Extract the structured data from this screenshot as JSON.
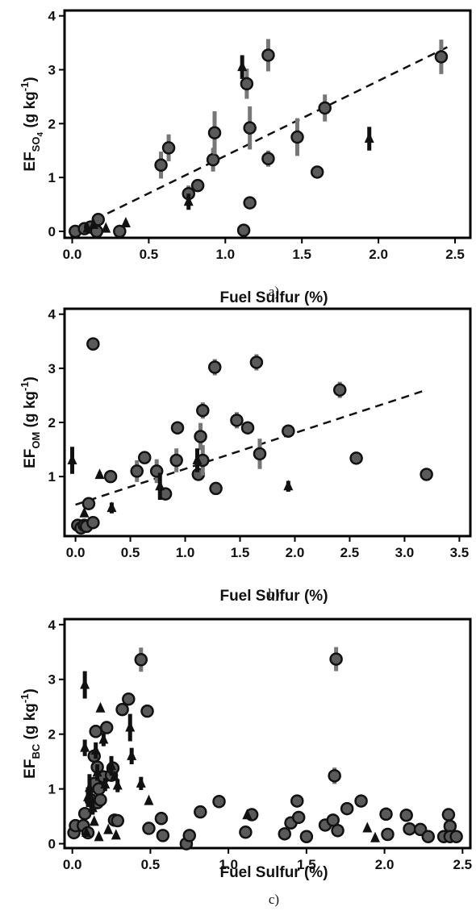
{
  "colors": {
    "circle_fill": "#5a5a5a",
    "circle_stroke": "#111111",
    "error_bar": "#777777",
    "triangle": "#111111",
    "fit_line": "#111111"
  },
  "chart_data": [
    {
      "type": "scatter",
      "panel_label": "a)",
      "xlabel": "Fuel Sulfur (%)",
      "ylabel": {
        "main": "EF",
        "sub": "SO",
        "sub2": "4",
        "units": " (g kg",
        "exp": "-1",
        "close": ")"
      },
      "xlim": [
        -0.05,
        2.6
      ],
      "ylim": [
        -0.12,
        4.1
      ],
      "xticks": [
        0.0,
        0.5,
        1.0,
        1.5,
        2.0,
        2.5
      ],
      "xtick_labels": [
        "0.0",
        "0.5",
        "1.0",
        "1.5",
        "2.0",
        "2.5"
      ],
      "yticks": [
        0,
        1,
        2,
        3,
        4
      ],
      "ytick_labels": [
        "0",
        "1",
        "2",
        "3",
        "4"
      ],
      "fit_line": {
        "x": [
          0.15,
          2.45
        ],
        "y": [
          0.22,
          3.42
        ]
      },
      "series": [
        {
          "marker": "circle",
          "x": [
            0.02,
            0.08,
            0.12,
            0.16,
            0.17,
            0.31,
            0.58,
            0.63,
            0.76,
            0.82,
            0.92,
            0.93,
            1.12,
            1.14,
            1.16,
            1.16,
            1.28,
            1.28,
            1.47,
            1.6,
            1.65,
            2.41
          ],
          "y": [
            0.0,
            0.05,
            0.08,
            0.0,
            0.22,
            0.0,
            1.23,
            1.55,
            0.7,
            0.85,
            1.33,
            1.83,
            0.02,
            2.74,
            0.53,
            1.92,
            3.27,
            1.35,
            1.75,
            1.1,
            2.29,
            3.24
          ],
          "err": [
            0.0,
            0.0,
            0.0,
            0.0,
            0.0,
            0.0,
            0.25,
            0.25,
            0.15,
            0.0,
            0.22,
            0.4,
            0.0,
            0.28,
            0.0,
            0.4,
            0.3,
            0.15,
            0.35,
            0.0,
            0.25,
            0.32
          ]
        },
        {
          "marker": "triangle",
          "x": [
            0.1,
            0.14,
            0.22,
            0.35,
            0.76,
            1.11,
            1.94
          ],
          "y": [
            0.05,
            0.12,
            0.05,
            0.15,
            0.55,
            3.05,
            1.72
          ],
          "err": [
            0.0,
            0.0,
            0.0,
            0.05,
            0.15,
            0.22,
            0.22
          ]
        }
      ]
    },
    {
      "type": "scatter",
      "panel_label": "b)",
      "xlabel": "Fuel Sulfur (%)",
      "ylabel": {
        "main": "EF",
        "sub": "OM",
        "sub2": "",
        "units": " (g kg",
        "exp": "-1",
        "close": ")"
      },
      "xlim": [
        -0.1,
        3.6
      ],
      "ylim": [
        -0.1,
        4.1
      ],
      "xticks": [
        0.0,
        0.5,
        1.0,
        1.5,
        2.0,
        2.5,
        3.0,
        3.5
      ],
      "xtick_labels": [
        "0.0",
        "0.5",
        "1.0",
        "1.5",
        "2.0",
        "2.5",
        "3.0",
        "3.5"
      ],
      "yticks": [
        1,
        2,
        3,
        4
      ],
      "ytick_labels": [
        "1",
        "2",
        "3",
        "4"
      ],
      "fit_line": {
        "x": [
          0.0,
          3.2
        ],
        "y": [
          0.48,
          2.6
        ]
      },
      "series": [
        {
          "marker": "circle",
          "x": [
            0.02,
            0.05,
            0.08,
            0.1,
            0.12,
            0.16,
            0.16,
            0.32,
            0.56,
            0.63,
            0.74,
            0.82,
            0.92,
            0.93,
            1.12,
            1.14,
            1.16,
            1.16,
            1.27,
            1.28,
            1.47,
            1.57,
            1.65,
            1.68,
            1.94,
            2.41,
            2.56,
            3.2
          ],
          "y": [
            0.1,
            0.05,
            0.1,
            0.08,
            0.5,
            0.15,
            3.45,
            1.0,
            1.1,
            1.35,
            1.1,
            0.68,
            1.3,
            1.9,
            1.04,
            1.74,
            2.22,
            1.3,
            3.02,
            0.78,
            2.04,
            1.9,
            3.11,
            1.42,
            1.84,
            2.6,
            1.34,
            1.04
          ],
          "err": [
            0.0,
            0.0,
            0.0,
            0.0,
            0.0,
            0.0,
            0.12,
            0.0,
            0.2,
            0.12,
            0.22,
            0.0,
            0.22,
            0.12,
            0.0,
            0.25,
            0.15,
            0.28,
            0.15,
            0.0,
            0.15,
            0.0,
            0.15,
            0.28,
            0.0,
            0.15,
            0.0,
            0.0
          ]
        },
        {
          "marker": "triangle",
          "x": [
            -0.03,
            0.08,
            0.22,
            0.33,
            0.77,
            1.11,
            1.94
          ],
          "y": [
            1.3,
            0.32,
            1.03,
            0.42,
            0.82,
            1.3,
            0.82
          ],
          "err": [
            0.25,
            0.0,
            0.05,
            0.1,
            0.25,
            0.22,
            0.1
          ]
        }
      ]
    },
    {
      "type": "scatter",
      "panel_label": "c)",
      "xlabel": "Fuel Sulfur (%)",
      "ylabel": {
        "main": "EF",
        "sub": "BC",
        "sub2": "",
        "units": " (g kg",
        "exp": "-1",
        "close": ")"
      },
      "xlim": [
        -0.05,
        2.55
      ],
      "ylim": [
        -0.08,
        4.1
      ],
      "xticks": [
        0.0,
        0.5,
        1.0,
        1.5,
        2.0,
        2.5
      ],
      "xtick_labels": [
        "0.0",
        "0.5",
        "1.0",
        "1.5",
        "2.0",
        "2.5"
      ],
      "yticks": [
        0,
        1,
        2,
        3,
        4
      ],
      "ytick_labels": [
        "0",
        "1",
        "2",
        "3",
        "4"
      ],
      "fit_line": null,
      "series": [
        {
          "marker": "circle",
          "x": [
            0.01,
            0.02,
            0.07,
            0.08,
            0.1,
            0.12,
            0.14,
            0.14,
            0.15,
            0.16,
            0.16,
            0.17,
            0.18,
            0.2,
            0.22,
            0.25,
            0.26,
            0.27,
            0.29,
            0.32,
            0.36,
            0.44,
            0.48,
            0.49,
            0.57,
            0.58,
            0.73,
            0.75,
            0.82,
            0.94,
            1.11,
            1.15,
            1.36,
            1.4,
            1.44,
            1.45,
            1.5,
            1.62,
            1.67,
            1.68,
            1.69,
            1.7,
            1.76,
            1.85,
            2.01,
            2.02,
            2.14,
            2.16,
            2.23,
            2.28,
            2.38,
            2.41,
            2.42,
            2.42,
            2.46
          ],
          "y": [
            0.2,
            0.33,
            0.33,
            0.55,
            0.2,
            0.8,
            1.1,
            1.6,
            2.05,
            0.75,
            1.4,
            1.0,
            0.8,
            1.22,
            2.12,
            1.25,
            1.38,
            0.43,
            0.42,
            2.45,
            2.64,
            3.36,
            2.42,
            0.28,
            0.46,
            0.15,
            0.0,
            0.15,
            0.58,
            0.77,
            0.21,
            0.53,
            0.18,
            0.38,
            0.78,
            0.48,
            0.13,
            0.34,
            0.43,
            1.24,
            3.37,
            0.24,
            0.64,
            0.78,
            0.54,
            0.17,
            0.52,
            0.27,
            0.26,
            0.13,
            0.13,
            0.53,
            0.32,
            0.13,
            0.13
          ],
          "err": [
            0.0,
            0.0,
            0.0,
            0.0,
            0.0,
            0.0,
            0.0,
            0.0,
            0.12,
            0.0,
            0.0,
            0.0,
            0.0,
            0.0,
            0.12,
            0.0,
            0.12,
            0.0,
            0.0,
            0.0,
            0.0,
            0.22,
            0.0,
            0.0,
            0.12,
            0.0,
            0.0,
            0.0,
            0.0,
            0.0,
            0.0,
            0.0,
            0.0,
            0.0,
            0.0,
            0.0,
            0.0,
            0.0,
            0.0,
            0.15,
            0.22,
            0.0,
            0.0,
            0.0,
            0.12,
            0.0,
            0.0,
            0.0,
            0.0,
            0.0,
            0.0,
            0.0,
            0.0,
            0.0,
            0.0
          ]
        },
        {
          "marker": "triangle",
          "x": [
            0.08,
            0.08,
            0.09,
            0.1,
            0.11,
            0.12,
            0.13,
            0.14,
            0.15,
            0.16,
            0.17,
            0.18,
            0.2,
            0.21,
            0.23,
            0.25,
            0.27,
            0.28,
            0.29,
            0.37,
            0.38,
            0.44,
            0.49,
            1.12,
            1.89,
            1.94
          ],
          "y": [
            1.75,
            2.9,
            0.2,
            0.85,
            1.02,
            0.8,
            0.65,
            0.4,
            1.7,
            1.3,
            0.12,
            2.47,
            1.9,
            1.08,
            0.25,
            1.42,
            1.22,
            0.15,
            1.06,
            2.12,
            1.6,
            1.1,
            0.78,
            0.52,
            0.28,
            0.1
          ],
          "err": [
            0.15,
            0.25,
            0.0,
            0.18,
            0.25,
            0.15,
            0.12,
            0.0,
            0.15,
            0.15,
            0.0,
            0.0,
            0.12,
            0.12,
            0.0,
            0.18,
            0.0,
            0.0,
            0.12,
            0.25,
            0.15,
            0.12,
            0.0,
            0.0,
            0.0,
            0.0
          ]
        }
      ]
    }
  ]
}
